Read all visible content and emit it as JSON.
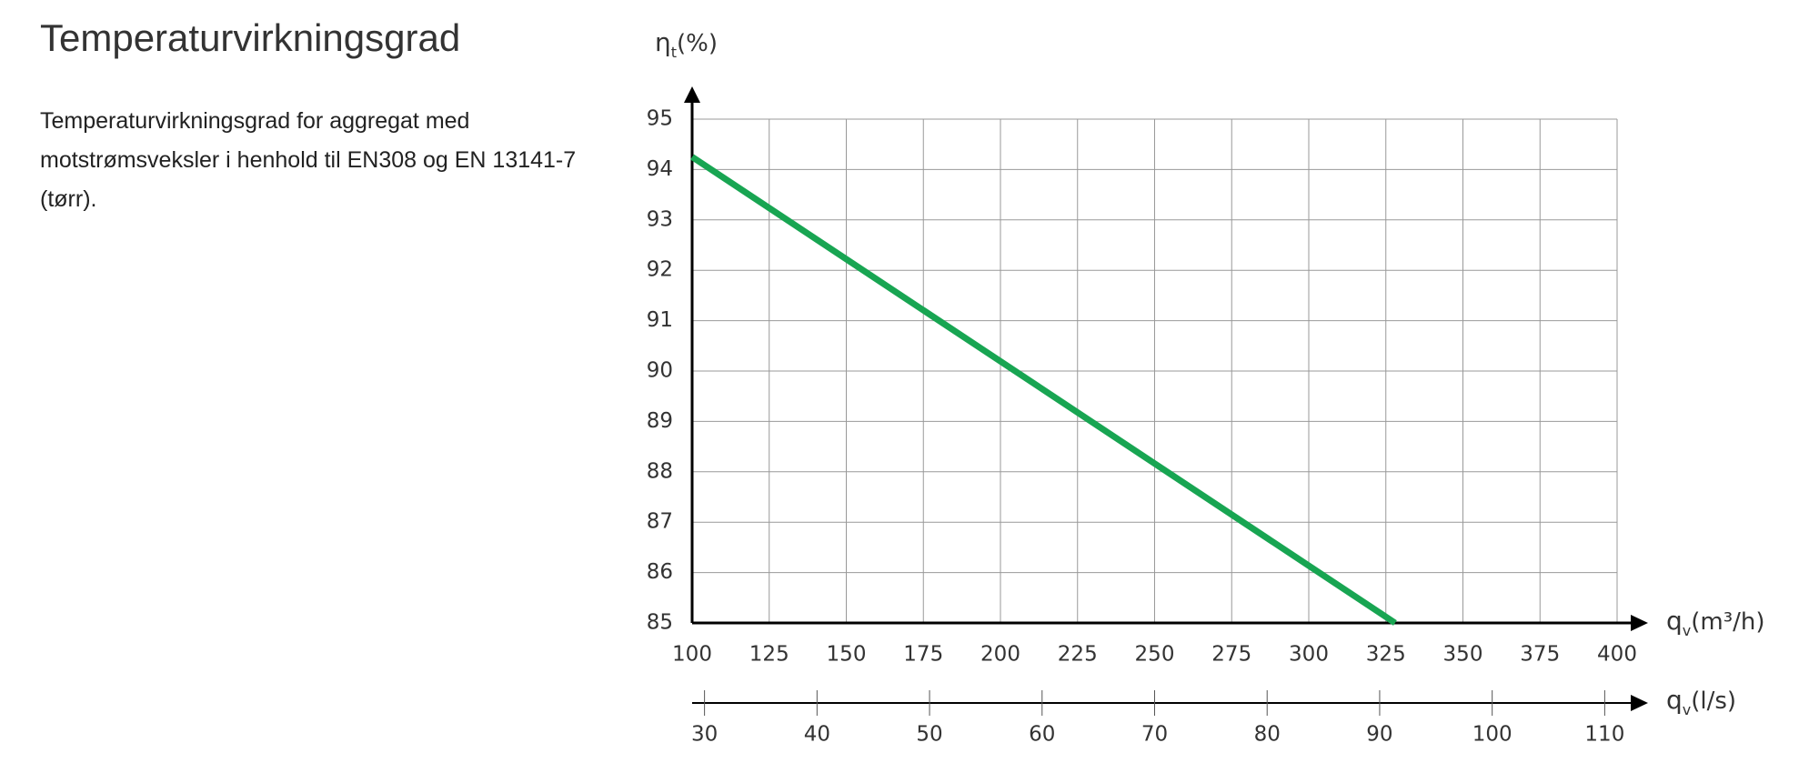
{
  "heading": "Temperaturvirkningsgrad",
  "description": "Temperaturvirkningsgrad for aggregat med motstrømsveksler i henhold til EN308 og EN 13141-7 (tørr).",
  "chart_data": {
    "type": "line",
    "ylabel": {
      "symbol": "η",
      "subscript": "t",
      "unit": "(%)"
    },
    "xlabel": {
      "symbol": "q",
      "subscript": "v",
      "unit": "(m³/h)"
    },
    "x2label": {
      "symbol": "q",
      "subscript": "v",
      "unit": "(l/s)"
    },
    "x": [
      100,
      328
    ],
    "series": [
      {
        "color": "#18a552",
        "values": [
          94.25,
          85
        ]
      }
    ],
    "xlim": [
      100,
      400
    ],
    "xticks": [
      100,
      125,
      150,
      175,
      200,
      225,
      250,
      275,
      300,
      325,
      350,
      375,
      400
    ],
    "ylim": [
      85,
      95
    ],
    "yticks": [
      85,
      86,
      87,
      88,
      89,
      90,
      91,
      92,
      93,
      94,
      95
    ],
    "x2lim": [
      28.9,
      111.1
    ],
    "x2ticks": [
      30,
      40,
      50,
      60,
      70,
      80,
      90,
      100,
      110
    ],
    "grid": true
  }
}
